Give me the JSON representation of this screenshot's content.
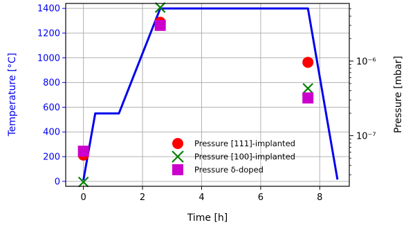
{
  "chart_data": {
    "type": "line",
    "xlabel": "Time [h]",
    "ylabel_left": "Temperature [°C]",
    "ylabel_right": "Pressure [mbar]",
    "xlim": [
      -0.6,
      9.0
    ],
    "ylim_left": [
      -40,
      1440
    ],
    "ylim_right_log": [
      2.1e-08,
      5.9e-06
    ],
    "x_ticks": [
      0,
      2,
      4,
      6,
      8
    ],
    "y_ticks_left": [
      0,
      200,
      400,
      600,
      800,
      1000,
      1200,
      1400
    ],
    "y_ticks_right_major": [
      {
        "value": 1e-07,
        "label": "10⁻⁷"
      },
      {
        "value": 1e-06,
        "label": "10⁻⁶"
      }
    ],
    "grid": true,
    "legend_position": "lower-center",
    "temperature_series": {
      "color": "#0000ee",
      "x": [
        0,
        0.4,
        1.2,
        2.6,
        7.6,
        8.6
      ],
      "y": [
        10,
        550,
        550,
        1400,
        1400,
        15
      ]
    },
    "pressure_series": [
      {
        "name": "Pressure [111]-implanted",
        "marker": "circle",
        "color": "#ff0000",
        "x": [
          0,
          2.6,
          7.6
        ],
        "y": [
          5.5e-08,
          3.3e-06,
          9.6e-07
        ]
      },
      {
        "name": "Pressure [100]-implanted",
        "marker": "x",
        "color": "#008000",
        "x": [
          0,
          2.6,
          7.6
        ],
        "y": [
          2.4e-08,
          5.2e-06,
          4.3e-07
        ]
      },
      {
        "name": "Pressure δ-doped",
        "marker": "square",
        "color": "#cc00cc",
        "x": [
          0,
          2.6,
          7.6
        ],
        "y": [
          6.2e-08,
          3e-06,
          3.2e-07
        ]
      }
    ]
  }
}
